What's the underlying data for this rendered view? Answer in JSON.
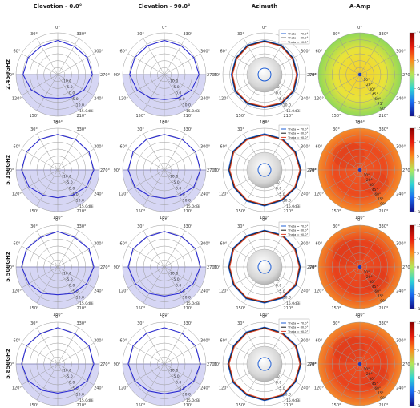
{
  "chart_data": {
    "type": "polar",
    "column_titles": [
      "Elevation - 0.0°",
      "Elevation - 90.0°",
      "Azimuth",
      "A-Amp"
    ],
    "row_labels": [
      "2.450GHz",
      "5.150GHz",
      "5.500GHz",
      "5.850GHz"
    ],
    "angle_labels": [
      "0°",
      "30°",
      "60°",
      "90°",
      "120°",
      "150°",
      "180°",
      "210°",
      "240°",
      "270°",
      "300°",
      "330°"
    ],
    "radial_labels": [
      "-10.0",
      "-5.0",
      "0.0",
      "5.0",
      "10.0",
      "15.0dBi"
    ],
    "azimuth_legend": [
      "Theta = 70.0°",
      "Theta = 80.0°",
      "Theta = 90.0°"
    ],
    "amp_theta_labels": [
      "10°",
      "20°",
      "30°",
      "45°",
      "60°",
      "75°",
      "90°"
    ],
    "colorbar_ticks": [
      "15",
      "10",
      "5",
      "0",
      "-5",
      "-10",
      "-15"
    ],
    "colors": {
      "elevation_trace": "#2b2bd0",
      "shade": "#c8c8f0",
      "theta70": "#1f5fd6",
      "theta80": "#1a1a1a",
      "theta90": "#e0442a",
      "grid": "#9a9a9a"
    },
    "elevation_0": [
      {
        "angles_deg": [
          0,
          30,
          60,
          90,
          120,
          150,
          180,
          210,
          240,
          270,
          300,
          330
        ],
        "gain_dbi": [
          9.5,
          8.5,
          9.5,
          10.0,
          7.0,
          4.0,
          2.0,
          4.0,
          7.0,
          10.0,
          9.5,
          8.5
        ]
      },
      {
        "angles_deg": [
          0,
          30,
          60,
          90,
          120,
          150,
          180,
          210,
          240,
          270,
          300,
          330
        ],
        "gain_dbi": [
          10.5,
          10.5,
          11.0,
          11.0,
          9.0,
          6.0,
          5.0,
          6.0,
          9.0,
          11.0,
          11.0,
          10.5
        ]
      },
      {
        "angles_deg": [
          0,
          30,
          60,
          90,
          120,
          150,
          180,
          210,
          240,
          270,
          300,
          330
        ],
        "gain_dbi": [
          10.5,
          9.5,
          11.0,
          11.0,
          9.0,
          7.0,
          5.0,
          7.0,
          9.0,
          11.0,
          11.0,
          9.5
        ]
      },
      {
        "angles_deg": [
          0,
          30,
          60,
          90,
          120,
          150,
          180,
          210,
          240,
          270,
          300,
          330
        ],
        "gain_dbi": [
          11.0,
          10.0,
          11.0,
          11.0,
          9.5,
          7.0,
          6.0,
          7.0,
          9.5,
          11.0,
          11.0,
          10.0
        ]
      }
    ],
    "elevation_90": [
      {
        "angles_deg": [
          0,
          30,
          60,
          90,
          120,
          150,
          180,
          210,
          240,
          270,
          300,
          330
        ],
        "gain_dbi": [
          9.5,
          9.0,
          9.5,
          10.0,
          7.5,
          4.5,
          3.0,
          4.5,
          7.5,
          10.0,
          9.5,
          9.0
        ]
      },
      {
        "angles_deg": [
          0,
          30,
          60,
          90,
          120,
          150,
          180,
          210,
          240,
          270,
          300,
          330
        ],
        "gain_dbi": [
          10.5,
          10.5,
          11.0,
          11.0,
          9.5,
          6.5,
          5.5,
          6.5,
          9.5,
          11.0,
          11.0,
          10.5
        ]
      },
      {
        "angles_deg": [
          0,
          30,
          60,
          90,
          120,
          150,
          180,
          210,
          240,
          270,
          300,
          330
        ],
        "gain_dbi": [
          10.5,
          10.0,
          11.0,
          11.0,
          9.0,
          7.0,
          6.0,
          7.0,
          9.0,
          11.0,
          11.0,
          10.0
        ]
      },
      {
        "angles_deg": [
          0,
          30,
          60,
          90,
          120,
          150,
          180,
          210,
          240,
          270,
          300,
          330
        ],
        "gain_dbi": [
          11.0,
          10.5,
          11.0,
          11.0,
          9.5,
          7.5,
          6.5,
          7.5,
          9.5,
          11.0,
          11.0,
          10.5
        ]
      }
    ],
    "azimuth": [
      {
        "angles_deg": [
          0,
          30,
          60,
          90,
          120,
          150,
          180,
          210,
          240,
          270,
          300,
          330
        ],
        "series": [
          {
            "name": "Theta = 70.0°",
            "gain_dbi": [
              9.5,
              9.5,
              9.0,
              9.0,
              9.5,
              9.5,
              9.0,
              9.5,
              9.5,
              9.0,
              9.0,
              9.5
            ]
          },
          {
            "name": "Theta = 80.0°",
            "gain_dbi": [
              9.0,
              9.0,
              8.5,
              8.5,
              9.0,
              9.0,
              8.5,
              9.0,
              9.0,
              8.5,
              8.5,
              9.0
            ]
          },
          {
            "name": "Theta = 90.0°",
            "gain_dbi": [
              8.5,
              8.5,
              8.0,
              8.0,
              8.5,
              8.5,
              8.0,
              8.5,
              8.5,
              8.0,
              8.0,
              8.5
            ]
          }
        ]
      },
      {
        "angles_deg": [
          0,
          30,
          60,
          90,
          120,
          150,
          180,
          210,
          240,
          270,
          300,
          330
        ],
        "series": [
          {
            "name": "Theta = 70.0°",
            "gain_dbi": [
              11.0,
              11.0,
              11.5,
              11.0,
              10.5,
              11.0,
              11.0,
              10.5,
              11.0,
              11.5,
              11.0,
              11.0
            ]
          },
          {
            "name": "Theta = 80.0°",
            "gain_dbi": [
              10.5,
              10.5,
              11.0,
              10.5,
              10.0,
              10.5,
              10.5,
              10.0,
              10.5,
              11.0,
              10.5,
              10.5
            ]
          },
          {
            "name": "Theta = 90.0°",
            "gain_dbi": [
              10.0,
              10.0,
              10.5,
              10.0,
              9.5,
              10.0,
              10.0,
              9.5,
              10.0,
              10.5,
              10.0,
              10.0
            ]
          }
        ]
      },
      {
        "angles_deg": [
          0,
          30,
          60,
          90,
          120,
          150,
          180,
          210,
          240,
          270,
          300,
          330
        ],
        "series": [
          {
            "name": "Theta = 70.0°",
            "gain_dbi": [
              11.5,
              11.0,
              11.5,
              11.0,
              11.0,
              11.5,
              11.0,
              11.0,
              11.5,
              11.0,
              11.0,
              11.5
            ]
          },
          {
            "name": "Theta = 80.0°",
            "gain_dbi": [
              11.0,
              10.5,
              11.0,
              10.5,
              10.5,
              11.0,
              10.5,
              10.5,
              11.0,
              10.5,
              10.5,
              11.0
            ]
          },
          {
            "name": "Theta = 90.0°",
            "gain_dbi": [
              10.5,
              10.0,
              10.5,
              10.0,
              10.0,
              10.5,
              10.0,
              10.0,
              10.5,
              10.0,
              10.0,
              10.5
            ]
          }
        ]
      },
      {
        "angles_deg": [
          0,
          30,
          60,
          90,
          120,
          150,
          180,
          210,
          240,
          270,
          300,
          330
        ],
        "series": [
          {
            "name": "Theta = 70.0°",
            "gain_dbi": [
              11.5,
              11.5,
              11.0,
              11.5,
              11.5,
              11.0,
              11.5,
              11.5,
              11.0,
              11.5,
              11.5,
              11.0
            ]
          },
          {
            "name": "Theta = 80.0°",
            "gain_dbi": [
              11.0,
              11.0,
              10.5,
              11.0,
              11.0,
              10.5,
              11.0,
              11.0,
              10.5,
              11.0,
              11.0,
              10.5
            ]
          },
          {
            "name": "Theta = 90.0°",
            "gain_dbi": [
              10.5,
              10.5,
              10.0,
              10.5,
              10.5,
              10.0,
              10.5,
              10.5,
              10.0,
              10.5,
              10.5,
              10.0
            ]
          }
        ]
      }
    ],
    "amp_mean_db": [
      4,
      9,
      10,
      10
    ],
    "ranges": {
      "radial_dbi": [
        -15,
        15
      ],
      "colorbar": [
        -15,
        15
      ]
    }
  }
}
